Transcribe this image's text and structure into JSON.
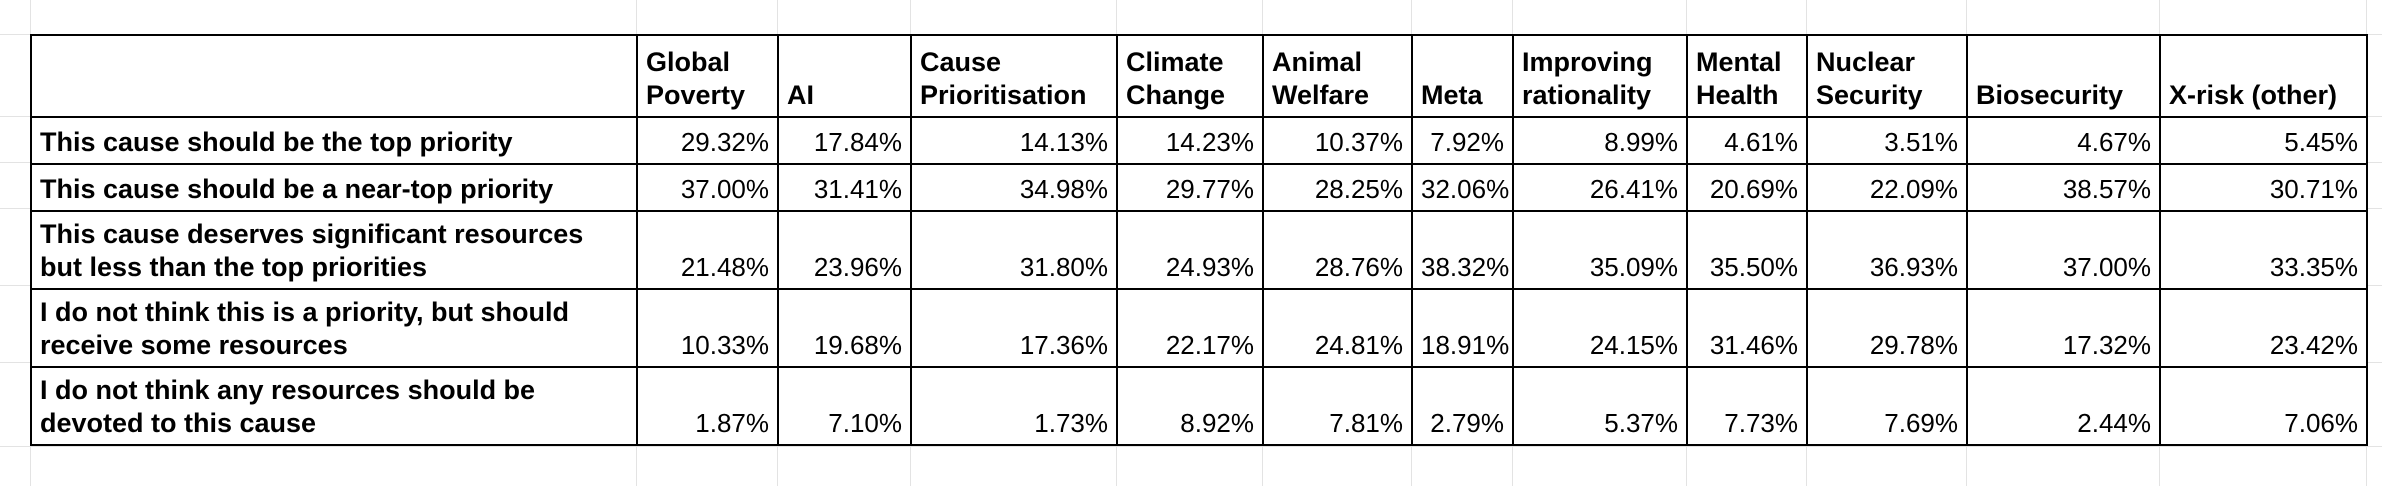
{
  "chart_data": {
    "type": "table",
    "columns": [
      "Global Poverty",
      "AI",
      "Cause Prioritisation",
      "Climate Change",
      "Animal Welfare",
      "Meta",
      "Improving rationality",
      "Mental Health",
      "Nuclear Security",
      "Biosecurity",
      "X-risk (other)"
    ],
    "rows": [
      {
        "label": "This cause should be the top priority",
        "values": [
          "29.32%",
          "17.84%",
          "14.13%",
          "14.23%",
          "10.37%",
          "7.92%",
          "8.99%",
          "4.61%",
          "3.51%",
          "4.67%",
          "5.45%"
        ]
      },
      {
        "label": "This cause should be a near-top priority",
        "values": [
          "37.00%",
          "31.41%",
          "34.98%",
          "29.77%",
          "28.25%",
          "32.06%",
          "26.41%",
          "20.69%",
          "22.09%",
          "38.57%",
          "30.71%"
        ]
      },
      {
        "label": "This cause deserves significant resources but less than the top priorities",
        "values": [
          "21.48%",
          "23.96%",
          "31.80%",
          "24.93%",
          "28.76%",
          "38.32%",
          "35.09%",
          "35.50%",
          "36.93%",
          "37.00%",
          "33.35%"
        ]
      },
      {
        "label": "I do not think this is a priority, but should receive some resources",
        "values": [
          "10.33%",
          "19.68%",
          "17.36%",
          "22.17%",
          "24.81%",
          "18.91%",
          "24.15%",
          "31.46%",
          "29.78%",
          "17.32%",
          "23.42%"
        ]
      },
      {
        "label": "I do not think any resources should be devoted to this cause",
        "values": [
          "1.87%",
          "7.10%",
          "1.73%",
          "8.92%",
          "7.81%",
          "2.79%",
          "5.37%",
          "7.73%",
          "7.69%",
          "2.44%",
          "7.06%"
        ]
      }
    ]
  }
}
